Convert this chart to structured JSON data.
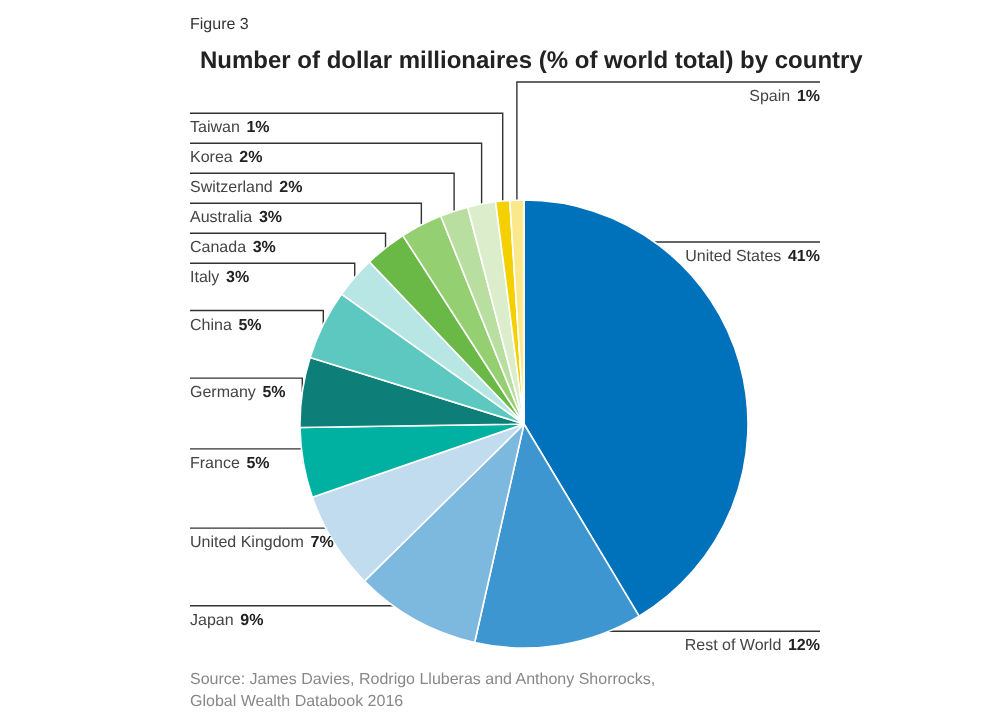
{
  "chart_data": {
    "type": "pie",
    "title": "Number of dollar millionaires (% of world total) by country",
    "categories": [
      "United States",
      "Rest of World",
      "Japan",
      "United Kingdom",
      "France",
      "Germany",
      "China",
      "Italy",
      "Canada",
      "Australia",
      "Switzerland",
      "Korea",
      "Taiwan",
      "Spain"
    ],
    "values": [
      41,
      12,
      9,
      7,
      5,
      5,
      5,
      3,
      3,
      3,
      2,
      2,
      1,
      1
    ],
    "value_labels": [
      "41%",
      "12%",
      "9%",
      "7%",
      "5%",
      "5%",
      "5%",
      "3%",
      "3%",
      "3%",
      "2%",
      "2%",
      "1%",
      "1%"
    ],
    "colors": [
      "#0071bb",
      "#3d96d0",
      "#7db8df",
      "#c0dcee",
      "#00b0a0",
      "#0e7f78",
      "#5cc8c0",
      "#b8e6e4",
      "#6ab845",
      "#94cf72",
      "#b9dfa0",
      "#dcedcc",
      "#f5d000",
      "#fbe88a"
    ],
    "annotations": [
      "Figure 3",
      "Source: James Davies, Rodrigo Lluberas and Anthony Shorrocks,\nGlobal Wealth Databook 2016"
    ],
    "legend": false
  }
}
